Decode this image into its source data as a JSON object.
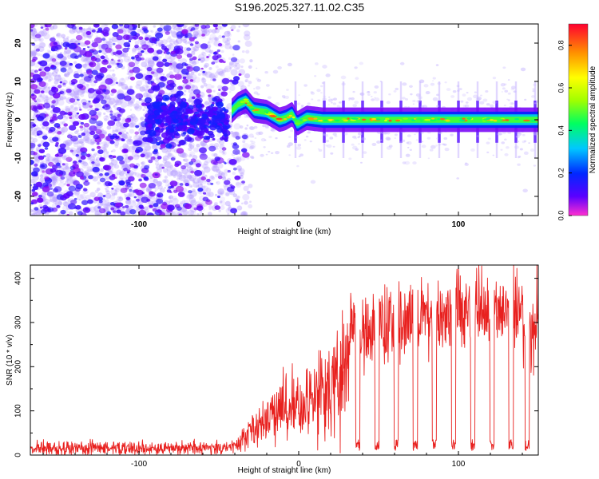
{
  "title": "S196.2025.327.11.02.C35",
  "chart_data": [
    {
      "type": "heatmap",
      "name": "spectrogram",
      "xlabel": "Height of straight line (km)",
      "ylabel": "Frequency (Hz)",
      "xlim": [
        -168,
        150
      ],
      "ylim": [
        -25,
        25
      ],
      "xticks": [
        -100,
        0,
        100
      ],
      "yticks": [
        -20,
        -10,
        0,
        10,
        20
      ],
      "xtick_labels": [
        "-100",
        "0",
        "100"
      ],
      "ytick_labels": [
        "-20",
        "-10",
        "0",
        "10",
        "20"
      ],
      "colorbar": {
        "label": "Normalized spectral amplitude",
        "range": [
          0,
          0.9
        ],
        "ticks": [
          "0.0",
          "0.2",
          "0.4",
          "0.6",
          "0.8"
        ],
        "tick_values": [
          0,
          0.2,
          0.4,
          0.6,
          0.8
        ],
        "colors": [
          "#ff2fd0",
          "#5a00ff",
          "#0028ff",
          "#00c8ff",
          "#00ff60",
          "#a0ff00",
          "#ffff00",
          "#ff9000",
          "#ff0030"
        ]
      },
      "description_features": {
        "noise_region_km": [
          -168,
          -30
        ],
        "noise_cloud_until_km": -33,
        "carrier_center_hz": 0,
        "carrier_drift_points": [
          [
            -45,
            1
          ],
          [
            -38,
            4
          ],
          [
            -33,
            5
          ],
          [
            -28,
            2.5
          ],
          [
            -20,
            2
          ],
          [
            -12,
            0
          ],
          [
            -8,
            0.5
          ],
          [
            -4,
            1.5
          ],
          [
            -1,
            -1
          ],
          [
            5,
            0.5
          ],
          [
            15,
            0
          ],
          [
            150,
            0
          ]
        ],
        "spike_positions_km": [
          -2,
          16,
          28,
          40,
          52,
          64,
          76,
          88,
          100,
          112,
          124,
          136,
          148
        ]
      }
    },
    {
      "type": "line",
      "name": "snr",
      "xlabel": "Height of straight line (km)",
      "ylabel": "SNR (10 * v/v)",
      "xlim": [
        -168,
        150
      ],
      "ylim": [
        0,
        430
      ],
      "xticks": [
        -100,
        0,
        100
      ],
      "yticks": [
        0,
        100,
        200,
        300,
        400
      ],
      "xtick_labels": [
        "-100",
        "0",
        "100"
      ],
      "ytick_labels": [
        "0",
        "100",
        "200",
        "300",
        "400"
      ],
      "color": "#e8201e",
      "series_profile": [
        [
          -168,
          15
        ],
        [
          -45,
          15
        ],
        [
          -40,
          25
        ],
        [
          -35,
          40
        ],
        [
          -25,
          70
        ],
        [
          -15,
          100
        ],
        [
          -5,
          110
        ],
        [
          5,
          120
        ],
        [
          15,
          140
        ],
        [
          25,
          160
        ],
        [
          30,
          200
        ],
        [
          33,
          320
        ],
        [
          40,
          280
        ],
        [
          50,
          290
        ],
        [
          60,
          310
        ],
        [
          70,
          320
        ],
        [
          80,
          320
        ],
        [
          90,
          320
        ],
        [
          100,
          340
        ],
        [
          110,
          320
        ],
        [
          120,
          330
        ],
        [
          130,
          340
        ],
        [
          140,
          320
        ],
        [
          146,
          250
        ],
        [
          148,
          300
        ],
        [
          150,
          340
        ]
      ],
      "dropouts_km": [
        37,
        49,
        61,
        73,
        85,
        97,
        109,
        121,
        133,
        143
      ]
    }
  ]
}
